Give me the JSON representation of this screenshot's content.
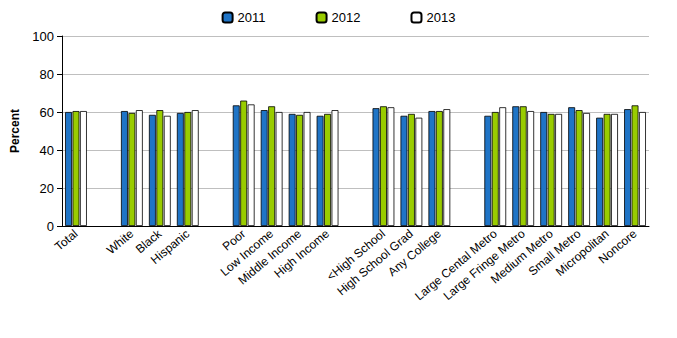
{
  "chart_data": {
    "type": "bar",
    "y_label": "Percent",
    "categories": [
      "Total",
      null,
      "White",
      "Black",
      "Hispanic",
      null,
      "Poor",
      "Low Income",
      "Middle Income",
      "High Income",
      null,
      "<High School",
      "High School Grad",
      "Any College",
      null,
      "Large Cental Metro",
      "Large Fringe Metro",
      "Medium Metro",
      "Small Metro",
      "Micropolitan",
      "Noncore"
    ],
    "series": [
      {
        "name": "2011",
        "color": "#1f74c6",
        "values": [
          60,
          null,
          60.5,
          58.5,
          59.5,
          null,
          63.5,
          61,
          59,
          58,
          null,
          62,
          58,
          60.5,
          null,
          58,
          63,
          60,
          62.5,
          57,
          61.5
        ]
      },
      {
        "name": "2012",
        "color": "#99cc00",
        "values": [
          60.5,
          null,
          59.5,
          61,
          60,
          null,
          66,
          63,
          58.5,
          59,
          null,
          63,
          59,
          60.5,
          null,
          60,
          63,
          59,
          61,
          59,
          63.5
        ]
      },
      {
        "name": "2013",
        "color": "#ffffff",
        "values": [
          60.5,
          null,
          61,
          58,
          61,
          null,
          64,
          60,
          60,
          61,
          null,
          62.5,
          57,
          61.5,
          null,
          62.5,
          60.5,
          59,
          59.5,
          59,
          60
        ]
      }
    ],
    "ylim": [
      0,
      100
    ],
    "yticks": [
      0,
      20,
      40,
      60,
      80,
      100
    ],
    "grid": true,
    "legend": "top"
  }
}
